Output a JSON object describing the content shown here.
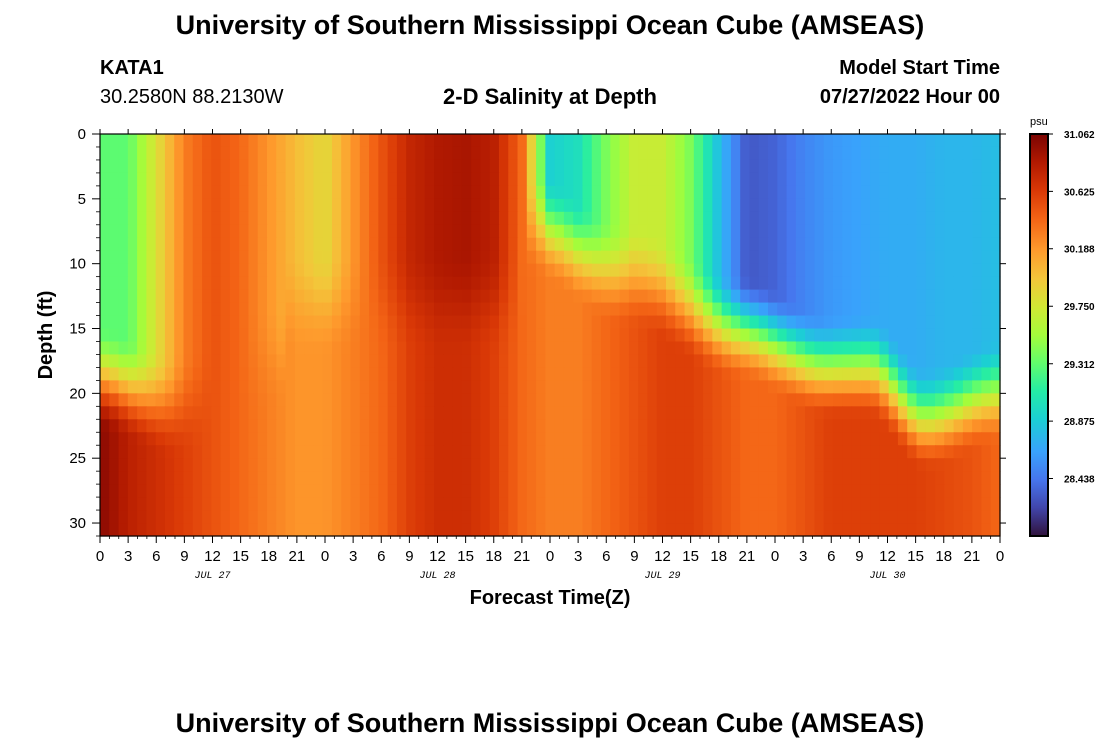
{
  "header": {
    "title_top": "University of Southern Mississippi Ocean Cube (AMSEAS)",
    "title_bottom": "University of Southern Mississippi Ocean Cube (AMSEAS)",
    "station": "KATA1",
    "coordinates": "30.2580N  88.2130W",
    "plot_title": "2-D Salinity at Depth",
    "model_start_label": "Model Start Time",
    "model_start_value": "07/27/2022 Hour 00"
  },
  "chart_data": {
    "type": "heatmap",
    "title": "2-D Salinity at Depth",
    "xlabel": "Forecast Time(Z)",
    "ylabel": "Depth (ft)",
    "x_hours": [
      0,
      96
    ],
    "y_depth_ft": [
      0,
      31
    ],
    "x_tick_labels": [
      "0",
      "3",
      "6",
      "9",
      "12",
      "15",
      "18",
      "21",
      "0",
      "3",
      "6",
      "9",
      "12",
      "15",
      "18",
      "21",
      "0",
      "3",
      "6",
      "9",
      "12",
      "15",
      "18",
      "21",
      "0",
      "3",
      "6",
      "9",
      "12",
      "15",
      "18",
      "21",
      "0"
    ],
    "y_ticks": [
      0,
      5,
      10,
      15,
      20,
      25,
      30
    ],
    "day_labels": [
      {
        "label": "JUL 27",
        "hour": 12
      },
      {
        "label": "JUL 28",
        "hour": 36
      },
      {
        "label": "JUL 29",
        "hour": 60
      },
      {
        "label": "JUL 30",
        "hour": 84
      }
    ],
    "colorbar": {
      "unit": "psu",
      "min": 28.0,
      "max": 31.062,
      "tick_labels": [
        "31.062",
        "30.625",
        "30.188",
        "29.750",
        "29.312",
        "28.875",
        "28.438"
      ]
    },
    "field_description": {
      "surface_layer_hours": [
        0,
        3,
        6,
        9,
        12,
        15,
        18,
        21,
        24,
        27,
        30,
        33,
        36,
        39,
        42,
        45,
        48,
        51,
        54,
        57,
        60,
        63,
        66,
        69,
        72,
        75,
        78,
        81,
        84,
        87,
        90,
        93,
        96
      ],
      "surface_layer_psu": [
        29.3,
        29.3,
        29.8,
        30.3,
        30.5,
        30.4,
        30.2,
        30.0,
        29.85,
        30.2,
        30.5,
        30.75,
        30.85,
        30.88,
        30.8,
        30.4,
        28.9,
        29.0,
        29.4,
        29.7,
        29.7,
        29.4,
        28.8,
        28.3,
        28.35,
        28.5,
        28.6,
        28.65,
        28.7,
        28.7,
        28.75,
        28.75,
        28.8
      ],
      "bottom_layer_psu": [
        31.0,
        30.8,
        30.7,
        30.6,
        30.5,
        30.4,
        30.3,
        30.2,
        30.2,
        30.3,
        30.4,
        30.6,
        30.7,
        30.7,
        30.6,
        30.4,
        30.3,
        30.3,
        30.4,
        30.5,
        30.6,
        30.6,
        30.5,
        30.4,
        30.4,
        30.5,
        30.6,
        30.6,
        30.6,
        30.6,
        30.55,
        30.5,
        30.4
      ]
    }
  }
}
